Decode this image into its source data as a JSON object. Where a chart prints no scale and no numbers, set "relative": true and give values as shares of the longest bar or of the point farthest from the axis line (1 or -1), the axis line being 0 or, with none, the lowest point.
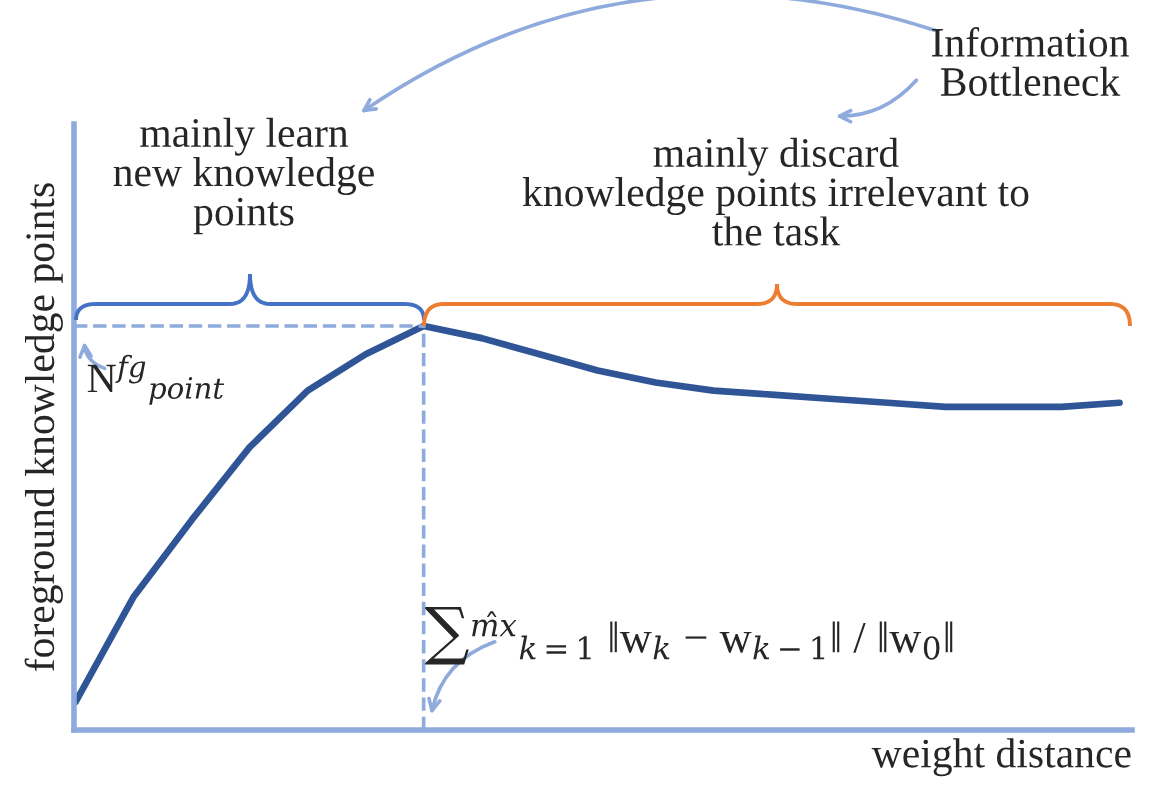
{
  "chart_data": {
    "type": "line",
    "relative": true,
    "categories": [
      null,
      null,
      null,
      null,
      null,
      null,
      null,
      null,
      null,
      null,
      null,
      null,
      null,
      null,
      null,
      null,
      null,
      null,
      null
    ],
    "xlabel": "weight distance",
    "ylabel": "foreground knowledge points",
    "series": [
      {
        "color": "#2f5597",
        "values": [
          0.07,
          0.33,
          0.52,
          0.7,
          0.84,
          0.93,
          1.0,
          0.97,
          0.93,
          0.89,
          0.86,
          0.84,
          0.83,
          0.82,
          0.81,
          0.8,
          0.8,
          0.8,
          0.81
        ]
      }
    ],
    "ref_lines": [
      {
        "axis": "y",
        "value": 1.0,
        "color": "#8faadc",
        "line_style": "dashed"
      }
    ],
    "annotations": [
      "Information\nBottleneck",
      "mainly learn\nnew knowledge\npoints",
      "mainly discard\nknowledge points irrelevant to\nthe task",
      "N$^{fg}$$_{point}$",
      "∑$^{m̂x}$$_{k=1}$ ‖w$_{k}$ − w$_{k−1}$‖ / ‖w$_{0}$‖"
    ],
    "marker": "none",
    "line_style": "solid",
    "tick_labels": false
  }
}
